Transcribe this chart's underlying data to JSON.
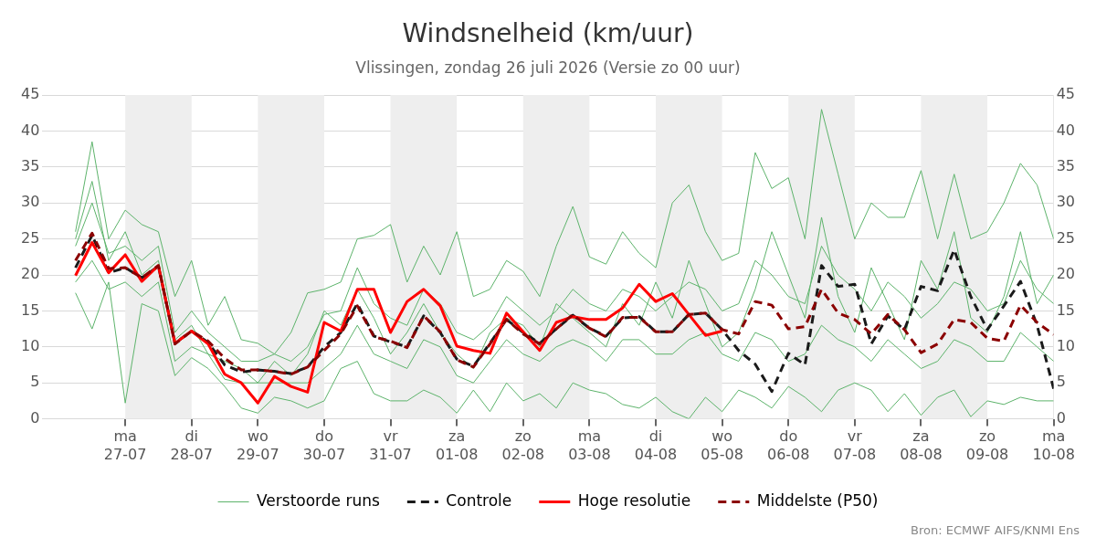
{
  "chart_data": {
    "type": "line",
    "title": "Windsnelheid (km/uur)",
    "subtitle": "Vlissingen, zondag 26 juli 2026 (Versie zo 00 uur)",
    "x": [
      "2026-07-26T06:00",
      "2026-07-26T12:00",
      "2026-07-26T18:00",
      "2026-07-27T00:00",
      "2026-07-27T06:00",
      "2026-07-27T12:00",
      "2026-07-27T18:00",
      "2026-07-28T00:00",
      "2026-07-28T06:00",
      "2026-07-28T12:00",
      "2026-07-28T18:00",
      "2026-07-29T00:00",
      "2026-07-29T06:00",
      "2026-07-29T12:00",
      "2026-07-29T18:00",
      "2026-07-30T00:00",
      "2026-07-30T06:00",
      "2026-07-30T12:00",
      "2026-07-30T18:00",
      "2026-07-31T00:00",
      "2026-07-31T06:00",
      "2026-07-31T12:00",
      "2026-07-31T18:00",
      "2026-08-01T00:00",
      "2026-08-01T06:00",
      "2026-08-01T12:00",
      "2026-08-01T18:00",
      "2026-08-02T00:00",
      "2026-08-02T06:00",
      "2026-08-02T12:00",
      "2026-08-02T18:00",
      "2026-08-03T00:00",
      "2026-08-03T06:00",
      "2026-08-03T12:00",
      "2026-08-03T18:00",
      "2026-08-04T00:00",
      "2026-08-04T06:00",
      "2026-08-04T12:00",
      "2026-08-04T18:00",
      "2026-08-05T00:00",
      "2026-08-05T06:00",
      "2026-08-05T12:00",
      "2026-08-05T18:00",
      "2026-08-06T00:00",
      "2026-08-06T06:00",
      "2026-08-06T12:00",
      "2026-08-06T18:00",
      "2026-08-07T00:00",
      "2026-08-07T06:00",
      "2026-08-07T12:00",
      "2026-08-07T18:00",
      "2026-08-08T00:00",
      "2026-08-08T06:00",
      "2026-08-08T12:00",
      "2026-08-08T18:00",
      "2026-08-09T00:00",
      "2026-08-09T06:00",
      "2026-08-09T12:00",
      "2026-08-09T18:00",
      "2026-08-10T00:00"
    ],
    "series": [
      {
        "name": "Verstoorde runs",
        "color": "#5db36b",
        "values": [
          26,
          38.5,
          25,
          29,
          27,
          26,
          17,
          22,
          13,
          17,
          11,
          10.5,
          9,
          12,
          17.5,
          18,
          19,
          25,
          25.5,
          27,
          19,
          24,
          20,
          26,
          17,
          18,
          22,
          20.5,
          17,
          24,
          29.5,
          22.5,
          21.5,
          26,
          23,
          21,
          30,
          32.5,
          26,
          22,
          23,
          37,
          32,
          33.5,
          25,
          43,
          34,
          25,
          30,
          28,
          28,
          34.5,
          25,
          34,
          25,
          26,
          30,
          35.5,
          32.5,
          25
        ]
      },
      {
        "color": "#5db36b",
        "values": [
          17.5,
          12.5,
          19,
          2.2,
          16,
          15,
          6,
          8.5,
          7,
          4.5,
          1.5,
          0.8,
          3,
          2.5,
          1.5,
          2.5,
          7,
          8,
          3.5,
          2.5,
          2.5,
          4,
          3,
          0.8,
          4,
          1,
          5,
          2.5,
          3.5,
          1.5,
          5,
          4,
          3.5,
          2,
          1.5,
          3,
          1,
          0,
          3,
          1,
          4,
          3,
          1.5,
          4.5,
          3,
          1,
          4,
          5,
          4,
          1,
          3.5,
          0.5,
          3,
          4,
          0.3,
          2.5,
          2,
          3,
          2.5,
          2.5
        ]
      },
      {
        "color": "#5db36b",
        "values": [
          24,
          30,
          23,
          24,
          22,
          24,
          12,
          15,
          12,
          10,
          8,
          8,
          9,
          8,
          10,
          14.5,
          15,
          21,
          16,
          14,
          13,
          18,
          16,
          12,
          11,
          13,
          17,
          15,
          13,
          15,
          18,
          16,
          15,
          18,
          17,
          15,
          17,
          19,
          18,
          15,
          16,
          22,
          20,
          17,
          16,
          24,
          20,
          18,
          15,
          19,
          17,
          14,
          16,
          19,
          18,
          15,
          16,
          22,
          18,
          16
        ]
      },
      {
        "color": "#5db36b",
        "values": [
          19,
          22,
          18,
          19,
          17,
          19,
          8,
          10,
          9,
          5.5,
          5,
          5,
          5,
          5,
          5,
          7,
          9,
          13,
          9,
          8,
          7,
          11,
          10,
          6,
          5,
          8,
          11,
          9,
          8,
          10,
          11,
          10,
          8,
          11,
          11,
          9,
          9,
          11,
          12,
          9,
          8,
          12,
          11,
          8,
          9,
          13,
          11,
          10,
          8,
          11,
          9,
          7,
          8,
          11,
          10,
          8,
          8,
          12,
          10,
          8
        ]
      },
      {
        "color": "#5db36b",
        "values": [
          25,
          33,
          22,
          26,
          20,
          22,
          11,
          13,
          9,
          8,
          7,
          5,
          8,
          6,
          9,
          15,
          13,
          18,
          14,
          9,
          12,
          16,
          12,
          9,
          7,
          12,
          14,
          13,
          10,
          16,
          14,
          12,
          10,
          16,
          13,
          19,
          14,
          22,
          16,
          10,
          12,
          18,
          26,
          20,
          14,
          28,
          17,
          12,
          21,
          16,
          11,
          22,
          18,
          26,
          14,
          12,
          17,
          26,
          16,
          20
        ]
      },
      {
        "name": "Controle",
        "color": "#1a1a1a",
        "line_style": "dashed",
        "values": [
          21,
          25.5,
          20.3,
          21,
          19.6,
          21.2,
          10.5,
          12.2,
          10.6,
          7.5,
          6.5,
          6.8,
          6.6,
          6.3,
          7.2,
          10,
          12,
          16,
          11.5,
          10.7,
          10,
          14.3,
          12,
          8.3,
          7.3,
          10.5,
          13.8,
          12,
          10.5,
          12.5,
          14.4,
          12.6,
          11.5,
          14,
          14.2,
          12.1,
          12.1,
          14.5,
          14.7,
          12.4,
          9.5,
          7.6,
          3.8,
          9.1,
          7.5,
          21.3,
          18.4,
          18.7,
          10.4,
          14.3,
          12.4,
          18.4,
          17.8,
          23.5,
          17,
          12.4,
          15.7,
          19.1,
          13,
          4.2
        ]
      },
      {
        "name": "Hoge resolutie",
        "color": "#ff0000",
        "values": [
          19.9,
          24.5,
          20.3,
          22.8,
          19.1,
          21.3,
          10.5,
          12.2,
          10.4,
          6.2,
          5,
          2.2,
          5.9,
          4.5,
          3.7,
          13.4,
          12.2,
          18,
          18,
          12,
          16.3,
          18,
          15.7,
          10.1,
          9.5,
          9.1,
          14.7,
          12.1,
          9.5,
          13.4,
          14.2,
          13.8,
          13.8,
          15.4,
          18.7,
          16.3,
          17.4,
          14.5,
          11.6,
          12.2,
          null,
          null,
          null,
          null,
          null,
          null,
          null,
          null,
          null,
          null,
          null,
          null,
          null,
          null,
          null,
          null,
          null,
          null,
          null,
          null
        ]
      },
      {
        "name": "Middelste (P50)",
        "color": "#8b0000",
        "line_style": "dashed",
        "values": [
          22,
          25.8,
          20.9,
          21,
          19.6,
          21.3,
          10.4,
          12.2,
          10.8,
          8.4,
          6.8,
          6.8,
          6.6,
          6.2,
          7.2,
          9.5,
          11.8,
          15.7,
          11.4,
          10.8,
          9.9,
          14.3,
          12.1,
          8.2,
          7.2,
          10.4,
          13.8,
          11.8,
          10.4,
          12.5,
          14.5,
          12.6,
          11.4,
          14.1,
          14.1,
          12.1,
          12.1,
          14.5,
          14.7,
          12.4,
          11.8,
          16.3,
          15.8,
          12.5,
          12.8,
          18,
          14.7,
          13.8,
          11.8,
          14.5,
          12.4,
          9.2,
          10.4,
          13.8,
          13.4,
          11.2,
          10.8,
          15.8,
          13.4,
          11.7
        ]
      }
    ],
    "xlim": [
      "2026-07-25T18:00",
      "2026-08-10T00:00"
    ],
    "xticks": [
      {
        "value": "2026-07-27",
        "label": "ma 27-07"
      },
      {
        "value": "2026-07-28",
        "label": "di 28-07"
      },
      {
        "value": "2026-07-29",
        "label": "wo 29-07"
      },
      {
        "value": "2026-07-30",
        "label": "do 30-07"
      },
      {
        "value": "2026-07-31",
        "label": "vr 31-07"
      },
      {
        "value": "2026-08-01",
        "label": "za 01-08"
      },
      {
        "value": "2026-08-02",
        "label": "zo 02-08"
      },
      {
        "value": "2026-08-03",
        "label": "ma 03-08"
      },
      {
        "value": "2026-08-04",
        "label": "di 04-08"
      },
      {
        "value": "2026-08-05",
        "label": "wo 05-08"
      },
      {
        "value": "2026-08-06",
        "label": "do 06-08"
      },
      {
        "value": "2026-08-07",
        "label": "vr 07-08"
      },
      {
        "value": "2026-08-08",
        "label": "za 08-08"
      },
      {
        "value": "2026-08-09",
        "label": "zo 09-08"
      },
      {
        "value": "2026-08-10",
        "label": "ma 10-08"
      }
    ],
    "ylim": [
      0,
      45
    ],
    "yticks": [
      0,
      5,
      10,
      15,
      20,
      25,
      30,
      35,
      40,
      45
    ],
    "y2lim": [
      0,
      45
    ],
    "y2ticks": [
      0,
      5,
      10,
      15,
      20,
      25,
      30,
      35,
      40,
      45
    ],
    "bands": [
      {
        "axis": "x",
        "from": "2026-07-27",
        "to": "2026-07-28",
        "color": "#eeeeee"
      },
      {
        "axis": "x",
        "from": "2026-07-29",
        "to": "2026-07-30",
        "color": "#eeeeee"
      },
      {
        "axis": "x",
        "from": "2026-07-31",
        "to": "2026-08-01",
        "color": "#eeeeee"
      },
      {
        "axis": "x",
        "from": "2026-08-02",
        "to": "2026-08-03",
        "color": "#eeeeee"
      },
      {
        "axis": "x",
        "from": "2026-08-04",
        "to": "2026-08-05",
        "color": "#eeeeee"
      },
      {
        "axis": "x",
        "from": "2026-08-06",
        "to": "2026-08-07",
        "color": "#eeeeee"
      },
      {
        "axis": "x",
        "from": "2026-08-08",
        "to": "2026-08-09",
        "color": "#eeeeee"
      }
    ],
    "annotations": [
      "Bron: ECMWF AIFS/KNMI Ens"
    ],
    "grid": "y",
    "legend": "bottom",
    "marker": "none"
  }
}
